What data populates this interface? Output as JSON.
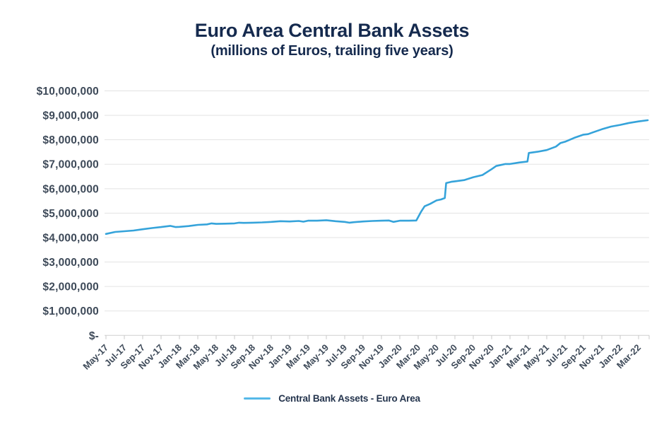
{
  "header": {
    "title": "Euro Area Central Bank Assets",
    "subtitle": "(millions of Euros, trailing five years)"
  },
  "legend": {
    "label": "Central Bank Assets - Euro Area"
  },
  "colors": {
    "title_text": "#152a4e",
    "axis_label_text": "#3e4a59",
    "line": "#35a3da",
    "legend_line": "#56b9e8",
    "gridline": "#e3e3e3",
    "axis_line": "#cfcfcf",
    "tick": "#c9c9c9",
    "background": "#ffffff"
  },
  "chart_data": {
    "type": "line",
    "title": "Euro Area Central Bank Assets",
    "subtitle": "(millions of Euros, trailing five years)",
    "unit": "millions of Euros",
    "grid": "horizontal",
    "legend_position": "bottom",
    "x_axis": {
      "start": "May-17",
      "end": "Mar-22",
      "months_per_labeled_tick": 2,
      "tick_labels": [
        "May-17",
        "Jul-17",
        "Sep-17",
        "Nov-17",
        "Jan-18",
        "Mar-18",
        "May-18",
        "Jul-18",
        "Sep-18",
        "Nov-18",
        "Jan-19",
        "Mar-19",
        "May-19",
        "Jul-19",
        "Sep-19",
        "Nov-19",
        "Jan-20",
        "Mar-20",
        "May-20",
        "Jul-20",
        "Sep-20",
        "Nov-20",
        "Jan-21",
        "Mar-21",
        "May-21",
        "Jul-21",
        "Sep-21",
        "Nov-21",
        "Jan-22",
        "Mar-22"
      ]
    },
    "y_axis": {
      "min": 0,
      "max": 10000000,
      "step": 1000000,
      "tick_labels_top_to_bottom": [
        "$10,000,000",
        "$9,000,000",
        "$8,000,000",
        "$7,000,000",
        "$6,000,000",
        "$5,000,000",
        "$4,000,000",
        "$3,000,000",
        "$2,000,000",
        "$1,000,000",
        "$-"
      ]
    },
    "series": [
      {
        "name": "Central Bank Assets - Euro Area",
        "color": "#35a3da",
        "x_unit": "months since May-2017 (fractional = intra-month reading)",
        "y_unit": "millions of Euros",
        "points": [
          [
            0,
            4150000
          ],
          [
            1,
            4230000
          ],
          [
            2,
            4260000
          ],
          [
            3,
            4290000
          ],
          [
            4,
            4340000
          ],
          [
            5,
            4390000
          ],
          [
            6,
            4430000
          ],
          [
            7,
            4480000
          ],
          [
            7.6,
            4430000
          ],
          [
            8,
            4440000
          ],
          [
            9,
            4470000
          ],
          [
            10,
            4520000
          ],
          [
            11,
            4540000
          ],
          [
            11.5,
            4580000
          ],
          [
            12,
            4560000
          ],
          [
            13,
            4570000
          ],
          [
            14,
            4580000
          ],
          [
            14.5,
            4610000
          ],
          [
            15,
            4600000
          ],
          [
            16,
            4610000
          ],
          [
            17,
            4620000
          ],
          [
            18,
            4640000
          ],
          [
            19,
            4670000
          ],
          [
            20,
            4660000
          ],
          [
            21,
            4680000
          ],
          [
            21.5,
            4650000
          ],
          [
            22,
            4690000
          ],
          [
            23,
            4690000
          ],
          [
            24,
            4710000
          ],
          [
            25,
            4670000
          ],
          [
            26,
            4640000
          ],
          [
            26.5,
            4610000
          ],
          [
            27,
            4630000
          ],
          [
            28,
            4660000
          ],
          [
            29,
            4680000
          ],
          [
            30,
            4690000
          ],
          [
            30.8,
            4700000
          ],
          [
            31.3,
            4640000
          ],
          [
            32,
            4690000
          ],
          [
            33,
            4690000
          ],
          [
            33.8,
            4700000
          ],
          [
            34.3,
            5050000
          ],
          [
            34.7,
            5280000
          ],
          [
            35.3,
            5380000
          ],
          [
            36,
            5520000
          ],
          [
            36.5,
            5560000
          ],
          [
            36.9,
            5620000
          ],
          [
            37.05,
            6230000
          ],
          [
            37.6,
            6280000
          ],
          [
            38,
            6300000
          ],
          [
            39,
            6350000
          ],
          [
            40,
            6470000
          ],
          [
            41,
            6560000
          ],
          [
            42,
            6800000
          ],
          [
            42.5,
            6930000
          ],
          [
            43,
            6970000
          ],
          [
            43.5,
            7010000
          ],
          [
            44,
            7010000
          ],
          [
            45,
            7070000
          ],
          [
            45.9,
            7110000
          ],
          [
            46.05,
            7460000
          ],
          [
            47,
            7510000
          ],
          [
            48,
            7580000
          ],
          [
            49,
            7720000
          ],
          [
            49.5,
            7870000
          ],
          [
            50,
            7920000
          ],
          [
            51,
            8080000
          ],
          [
            52,
            8210000
          ],
          [
            52.5,
            8230000
          ],
          [
            53,
            8300000
          ],
          [
            54,
            8430000
          ],
          [
            55,
            8540000
          ],
          [
            56,
            8610000
          ],
          [
            57,
            8690000
          ],
          [
            58,
            8750000
          ],
          [
            59,
            8800000
          ]
        ]
      }
    ]
  }
}
